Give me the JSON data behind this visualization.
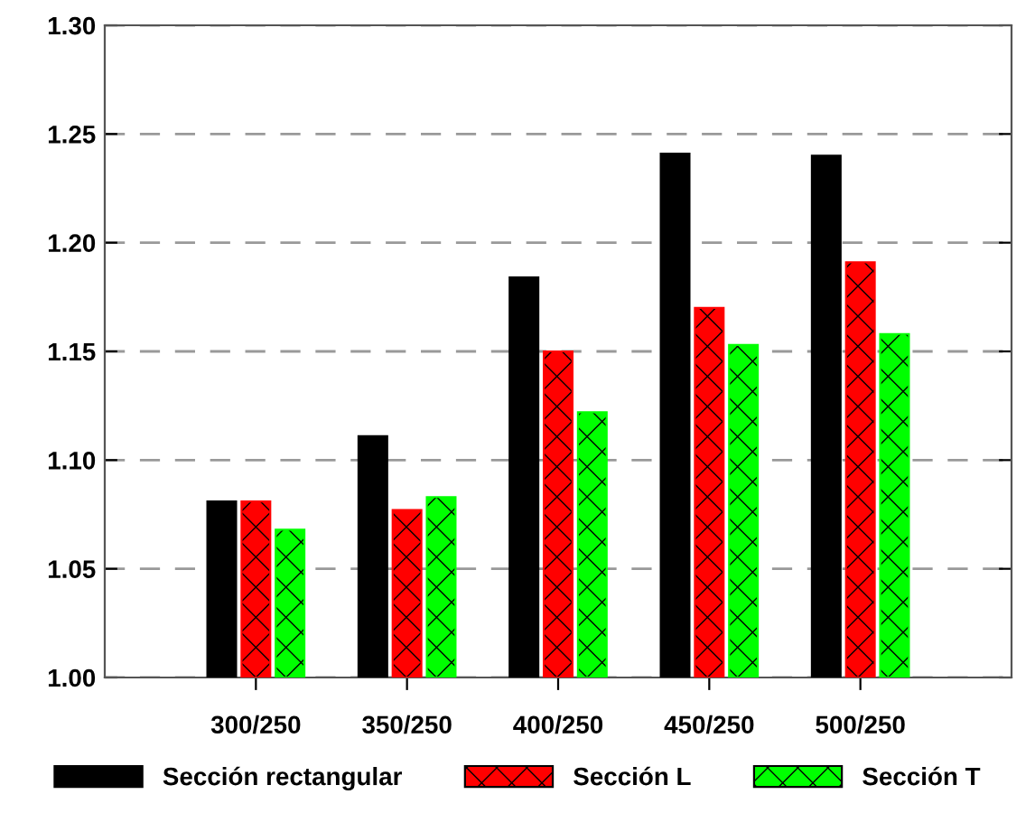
{
  "chart_data": {
    "type": "bar",
    "categories": [
      "300/250",
      "350/250",
      "400/250",
      "450/250",
      "500/250"
    ],
    "series": [
      {
        "name": "Sección rectangular",
        "color": "#000000",
        "values": [
          1.081,
          1.111,
          1.184,
          1.241,
          1.24
        ]
      },
      {
        "name": "Sección L",
        "color": "#ff0000",
        "values": [
          1.081,
          1.077,
          1.15,
          1.17,
          1.191
        ]
      },
      {
        "name": "Sección T",
        "color": "#00ff00",
        "values": [
          1.068,
          1.083,
          1.122,
          1.153,
          1.158
        ]
      }
    ],
    "ylim": [
      1.0,
      1.3
    ],
    "yticks": [
      {
        "value": 1.0,
        "label": "1.00"
      },
      {
        "value": 1.05,
        "label": "1.05"
      },
      {
        "value": 1.1,
        "label": "1.10"
      },
      {
        "value": 1.15,
        "label": "1.15"
      },
      {
        "value": 1.2,
        "label": "1.20"
      },
      {
        "value": 1.25,
        "label": "1.25"
      },
      {
        "value": 1.3,
        "label": "1.30"
      }
    ],
    "grid": "y",
    "legend": "bottom"
  }
}
